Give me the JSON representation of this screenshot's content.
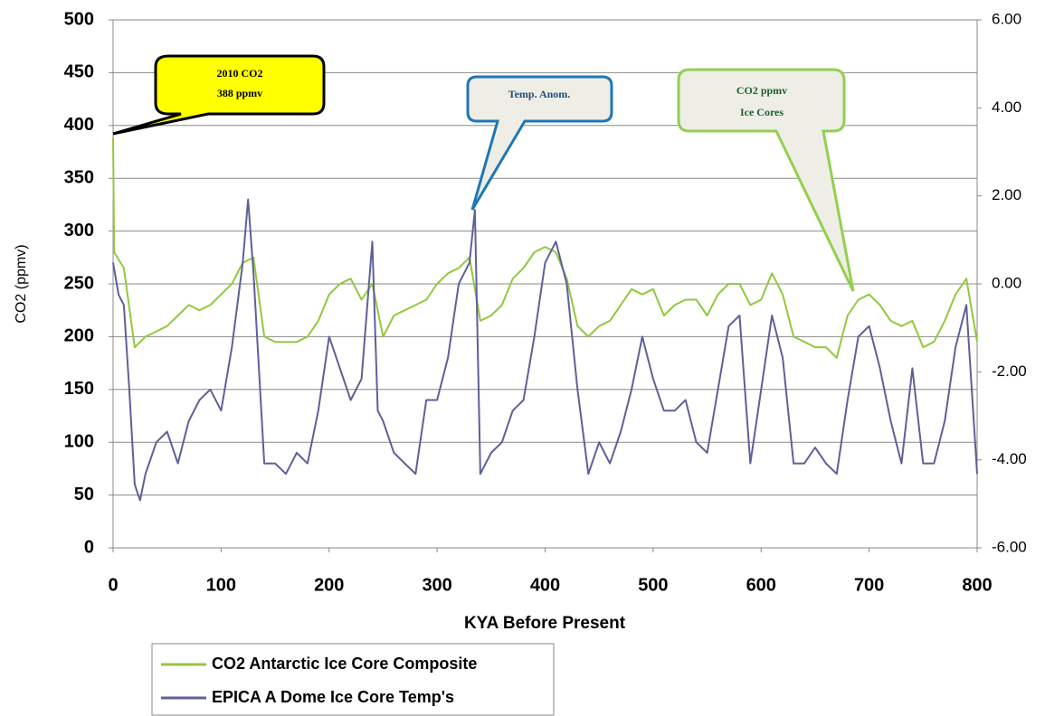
{
  "chart_data": {
    "type": "line",
    "x_label": "KYA Before Present",
    "y_label": "CO2 (ppmv)",
    "xlim": [
      0,
      800
    ],
    "xticks": [
      0,
      100,
      200,
      300,
      400,
      500,
      600,
      700,
      800
    ],
    "ylim": [
      0,
      500
    ],
    "yticks": [
      0,
      50,
      100,
      150,
      200,
      250,
      300,
      350,
      400,
      450,
      500
    ],
    "y2lim": [
      -6,
      6
    ],
    "y2ticks": [
      {
        "value": -6,
        "label": "-6.00"
      },
      {
        "value": -4,
        "label": "-4.00"
      },
      {
        "value": -2,
        "label": "-2.00"
      },
      {
        "value": 0,
        "label": "0.00"
      },
      {
        "value": 2,
        "label": "2.00"
      },
      {
        "value": 4,
        "label": "4.00"
      },
      {
        "value": 6,
        "label": "6.00"
      }
    ],
    "grid": true,
    "legend": "bottom-left",
    "series": [
      {
        "name": "CO2 Antarctic Ice Core Composite",
        "color": "#92c83e",
        "x": [
          0,
          1,
          10,
          20,
          30,
          40,
          50,
          60,
          70,
          80,
          90,
          100,
          110,
          120,
          130,
          140,
          150,
          160,
          170,
          180,
          190,
          200,
          210,
          220,
          230,
          240,
          250,
          260,
          270,
          280,
          290,
          300,
          310,
          320,
          330,
          340,
          350,
          360,
          370,
          380,
          390,
          400,
          410,
          420,
          430,
          440,
          450,
          460,
          470,
          480,
          490,
          500,
          510,
          520,
          530,
          540,
          550,
          560,
          570,
          580,
          590,
          600,
          610,
          620,
          630,
          640,
          650,
          660,
          670,
          680,
          690,
          700,
          710,
          720,
          730,
          740,
          750,
          760,
          770,
          780,
          790,
          800
        ],
        "values": [
          388,
          280,
          265,
          190,
          200,
          205,
          210,
          220,
          230,
          225,
          230,
          240,
          250,
          270,
          275,
          200,
          195,
          195,
          195,
          200,
          215,
          240,
          250,
          255,
          235,
          250,
          200,
          220,
          225,
          230,
          235,
          250,
          260,
          265,
          275,
          215,
          220,
          230,
          255,
          265,
          280,
          285,
          280,
          255,
          210,
          200,
          210,
          215,
          230,
          245,
          240,
          245,
          220,
          230,
          235,
          235,
          220,
          240,
          250,
          250,
          230,
          235,
          260,
          240,
          200,
          195,
          190,
          190,
          180,
          220,
          235,
          240,
          230,
          215,
          210,
          215,
          190,
          195,
          215,
          240,
          255,
          195
        ]
      },
      {
        "name": "EPICA A Dome Ice Core Temp's",
        "color": "#5f5f9b",
        "axis": "y2",
        "x": [
          0,
          5,
          10,
          15,
          20,
          25,
          30,
          40,
          50,
          60,
          70,
          80,
          90,
          100,
          110,
          120,
          125,
          130,
          140,
          150,
          160,
          170,
          180,
          190,
          200,
          210,
          220,
          230,
          240,
          245,
          250,
          260,
          270,
          280,
          290,
          300,
          310,
          320,
          330,
          335,
          340,
          350,
          360,
          370,
          380,
          390,
          400,
          410,
          420,
          430,
          440,
          450,
          460,
          470,
          480,
          490,
          500,
          510,
          520,
          530,
          540,
          550,
          560,
          570,
          580,
          590,
          600,
          610,
          620,
          630,
          640,
          650,
          660,
          670,
          680,
          690,
          700,
          710,
          720,
          730,
          740,
          750,
          760,
          770,
          780,
          790,
          800
        ],
        "values": [
          0.48,
          -0.24,
          -0.48,
          -2.4,
          -4.56,
          -4.92,
          -4.32,
          -3.6,
          -3.36,
          -4.08,
          -3.12,
          -2.64,
          -2.4,
          -2.88,
          -1.44,
          0.48,
          1.92,
          0.24,
          -4.08,
          -4.08,
          -4.32,
          -3.84,
          -4.08,
          -2.88,
          -1.2,
          -1.92,
          -2.64,
          -2.16,
          0.96,
          -2.88,
          -3.12,
          -3.84,
          -4.08,
          -4.32,
          -2.64,
          -2.64,
          -1.68,
          0,
          0.48,
          1.68,
          -4.32,
          -3.84,
          -3.6,
          -2.88,
          -2.64,
          -1.2,
          0.48,
          0.96,
          0,
          -2.4,
          -4.32,
          -3.6,
          -4.08,
          -3.36,
          -2.4,
          -1.2,
          -2.16,
          -2.88,
          -2.88,
          -2.64,
          -3.6,
          -3.84,
          -2.4,
          -0.96,
          -0.72,
          -4.08,
          -2.4,
          -0.72,
          -1.68,
          -4.08,
          -4.08,
          -3.72,
          -4.08,
          -4.32,
          -2.64,
          -1.2,
          -0.96,
          -1.92,
          -3.12,
          -4.08,
          -1.92,
          -4.08,
          -4.08,
          -3.12,
          -1.44,
          -0.48,
          -4.32
        ]
      }
    ],
    "annotations": [
      {
        "lines": [
          "2010 CO2",
          "388 ppmv"
        ]
      },
      {
        "lines": [
          "Temp. Anom."
        ]
      },
      {
        "lines": [
          "CO2 ppmv",
          "Ice Cores"
        ]
      }
    ]
  }
}
